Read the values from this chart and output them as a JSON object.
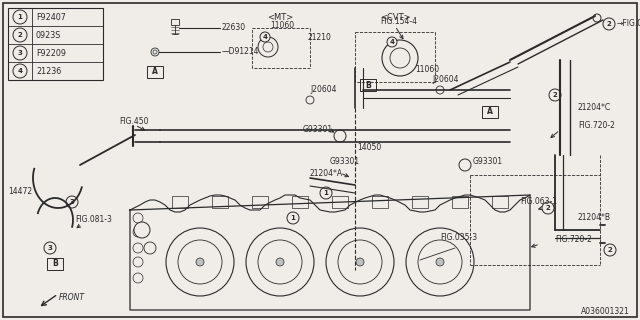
{
  "bg_color": "#f0ede8",
  "border_color": "#000000",
  "part_number": "A036001321",
  "legend_items": [
    {
      "num": "1",
      "code": "F92407"
    },
    {
      "num": "2",
      "code": "0923S"
    },
    {
      "num": "3",
      "code": "F92209"
    },
    {
      "num": "4",
      "code": "21236"
    }
  ],
  "fig_w": 6.4,
  "fig_h": 3.2,
  "dpi": 100
}
